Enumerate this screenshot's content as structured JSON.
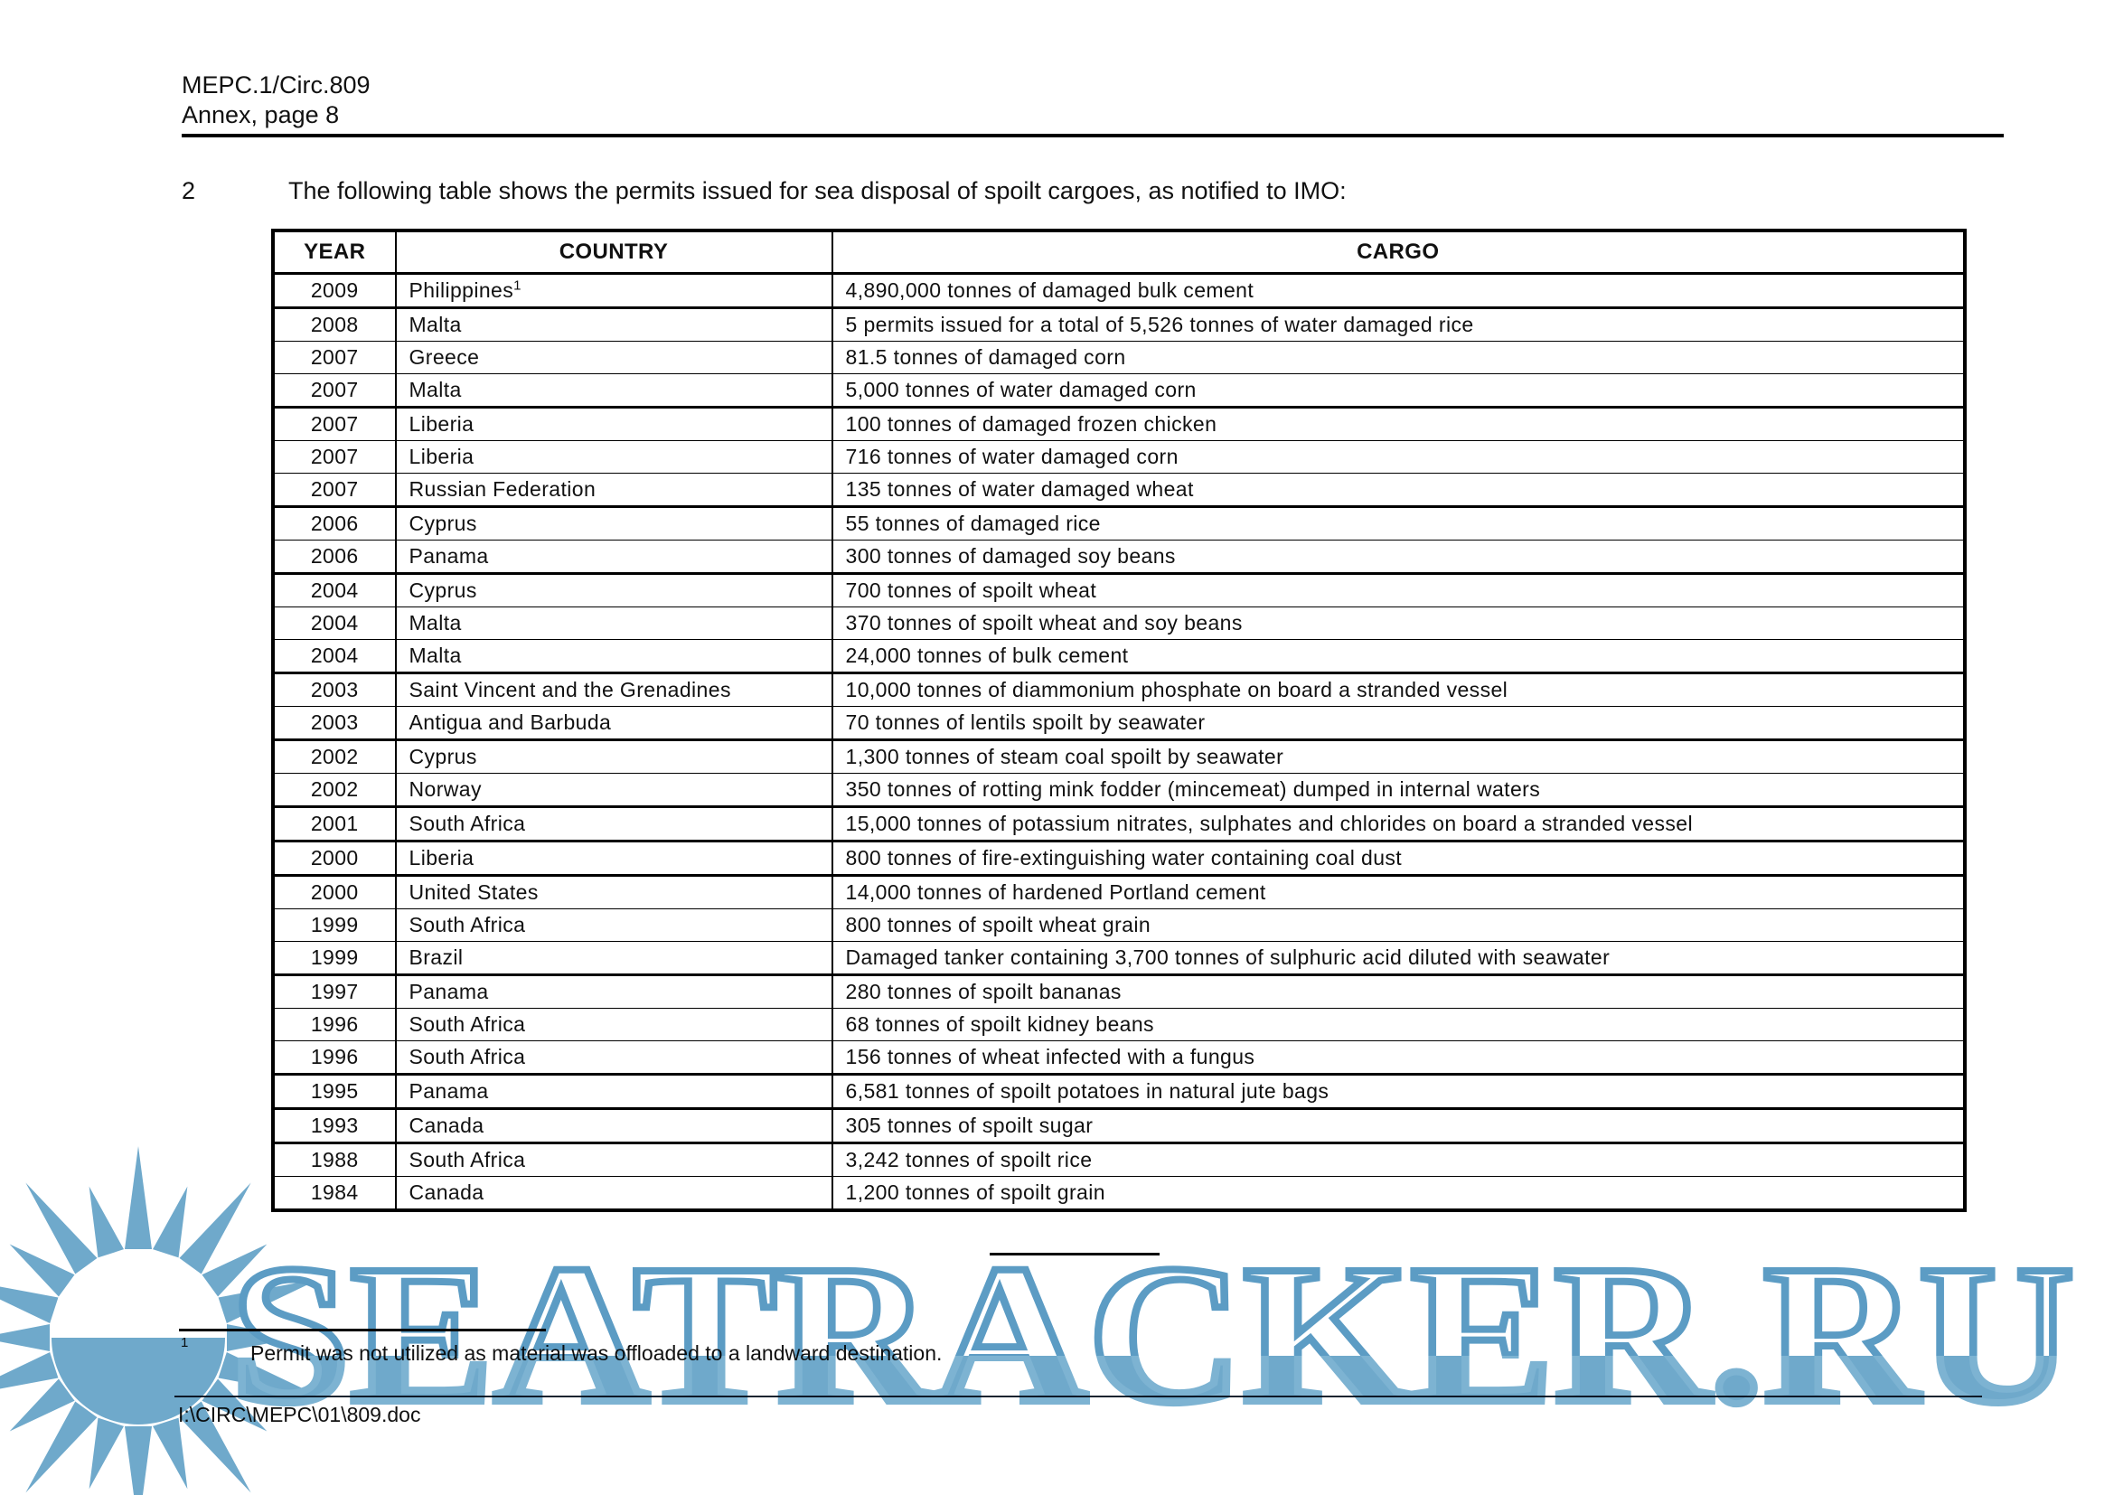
{
  "page_header": {
    "doc_ref": "MEPC.1/Circ.809",
    "annex_line": "Annex, page 8"
  },
  "intro": {
    "number": "2",
    "text": "The following table shows the permits issued for sea disposal of spoilt cargoes, as notified to IMO:"
  },
  "table": {
    "columns": [
      "YEAR",
      "COUNTRY",
      "CARGO"
    ],
    "rows": [
      {
        "year": "2009",
        "country": "Philippines",
        "country_footnote": "1",
        "cargo": "4,890,000 tonnes of damaged bulk cement"
      },
      {
        "year": "2008",
        "country": "Malta",
        "cargo": "5 permits issued for a total of 5,526 tonnes of water damaged rice"
      },
      {
        "year": "2007",
        "country": "Greece",
        "cargo": "81.5 tonnes of damaged corn"
      },
      {
        "year": "2007",
        "country": "Malta",
        "cargo": "5,000 tonnes of water damaged corn"
      },
      {
        "year": "2007",
        "country": "Liberia",
        "cargo": "100 tonnes of damaged frozen chicken"
      },
      {
        "year": "2007",
        "country": "Liberia",
        "cargo": "716 tonnes of water damaged corn"
      },
      {
        "year": "2007",
        "country": "Russian Federation",
        "cargo": "135 tonnes of water damaged wheat"
      },
      {
        "year": "2006",
        "country": "Cyprus",
        "cargo": "55 tonnes of damaged rice"
      },
      {
        "year": "2006",
        "country": "Panama",
        "cargo": "300 tonnes of damaged soy beans"
      },
      {
        "year": "2004",
        "country": "Cyprus",
        "cargo": "700 tonnes of spoilt wheat"
      },
      {
        "year": "2004",
        "country": "Malta",
        "cargo": "370 tonnes of spoilt wheat and soy beans"
      },
      {
        "year": "2004",
        "country": "Malta",
        "cargo": "24,000 tonnes of bulk cement"
      },
      {
        "year": "2003",
        "country": "Saint Vincent and the Grenadines",
        "cargo": "10,000 tonnes of diammonium phosphate on board a stranded vessel"
      },
      {
        "year": "2003",
        "country": "Antigua and Barbuda",
        "cargo": "70 tonnes of lentils spoilt by seawater"
      },
      {
        "year": "2002",
        "country": "Cyprus",
        "cargo": "1,300 tonnes of steam coal spoilt by seawater"
      },
      {
        "year": "2002",
        "country": "Norway",
        "cargo": "350 tonnes of rotting mink fodder (mincemeat) dumped in internal waters"
      },
      {
        "year": "2001",
        "country": "South Africa",
        "cargo": "15,000 tonnes of potassium nitrates, sulphates and chlorides on board a stranded vessel"
      },
      {
        "year": "2000",
        "country": "Liberia",
        "cargo": "800 tonnes of fire-extinguishing water containing coal dust"
      },
      {
        "year": "2000",
        "country": "United States",
        "cargo": "14,000 tonnes of hardened Portland cement"
      },
      {
        "year": "1999",
        "country": "South Africa",
        "cargo": "800 tonnes of spoilt wheat grain"
      },
      {
        "year": "1999",
        "country": "Brazil",
        "cargo": "Damaged tanker containing 3,700 tonnes of sulphuric acid diluted with seawater"
      },
      {
        "year": "1997",
        "country": "Panama",
        "cargo": "280 tonnes of spoilt bananas"
      },
      {
        "year": "1996",
        "country": "South Africa",
        "cargo": "68 tonnes of spoilt kidney beans"
      },
      {
        "year": "1996",
        "country": "South Africa",
        "cargo": "156 tonnes of wheat infected with a fungus"
      },
      {
        "year": "1995",
        "country": "Panama",
        "cargo": "6,581 tonnes of spoilt potatoes in natural jute bags"
      },
      {
        "year": "1993",
        "country": "Canada",
        "cargo": "305 tonnes of spoilt sugar"
      },
      {
        "year": "1988",
        "country": "South Africa",
        "cargo": "3,242 tonnes of spoilt rice"
      },
      {
        "year": "1984",
        "country": "Canada",
        "cargo": "1,200 tonnes of spoilt grain"
      }
    ]
  },
  "footnote": {
    "marker": "1",
    "text": "Permit was not utilized as material was offloaded to a landward destination."
  },
  "footer": {
    "file_path": "I:\\CIRC\\MEPC\\01\\809.doc"
  },
  "watermark": {
    "text": "SEATRACKER.RU",
    "fill_color": "#6FA9CB",
    "outline_color": "#5C9CC4",
    "light_outline_color": "#7DB3D2"
  }
}
